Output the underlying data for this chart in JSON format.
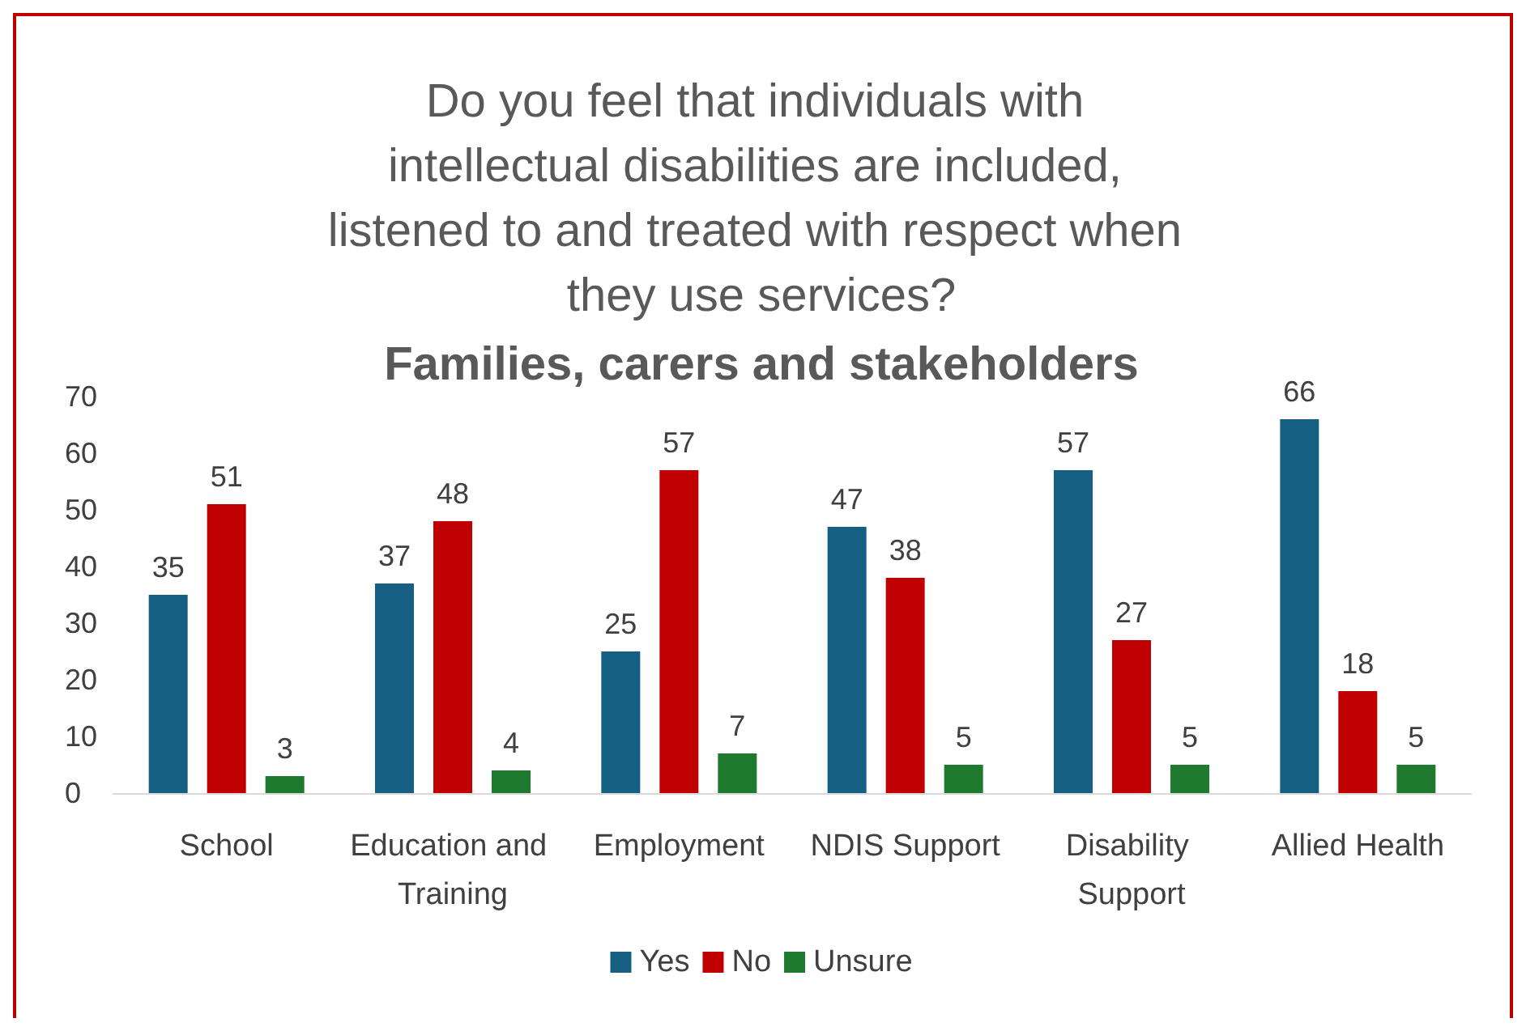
{
  "chart_data": {
    "type": "bar",
    "title": "Do you feel that individuals with intellectual disabilities are included, listened to and treated with respect when they use services?",
    "subtitle": "Families, carers and stakeholders",
    "categories": [
      "School",
      "Education and Training",
      "Employment",
      "NDIS Support",
      "Disability Support",
      "Allied Health"
    ],
    "series": [
      {
        "name": "Yes",
        "color": "#156082",
        "values": [
          35,
          37,
          25,
          47,
          57,
          66
        ]
      },
      {
        "name": "No",
        "color": "#c00000",
        "values": [
          51,
          48,
          57,
          38,
          27,
          18
        ]
      },
      {
        "name": "Unsure",
        "color": "#1e7a2f",
        "values": [
          3,
          4,
          7,
          5,
          5,
          5
        ]
      }
    ],
    "ylim": [
      0,
      70
    ],
    "yticks": [
      0,
      10,
      20,
      30,
      40,
      50,
      60,
      70
    ],
    "grid": false,
    "legend": "bottom",
    "data_labels": true
  }
}
